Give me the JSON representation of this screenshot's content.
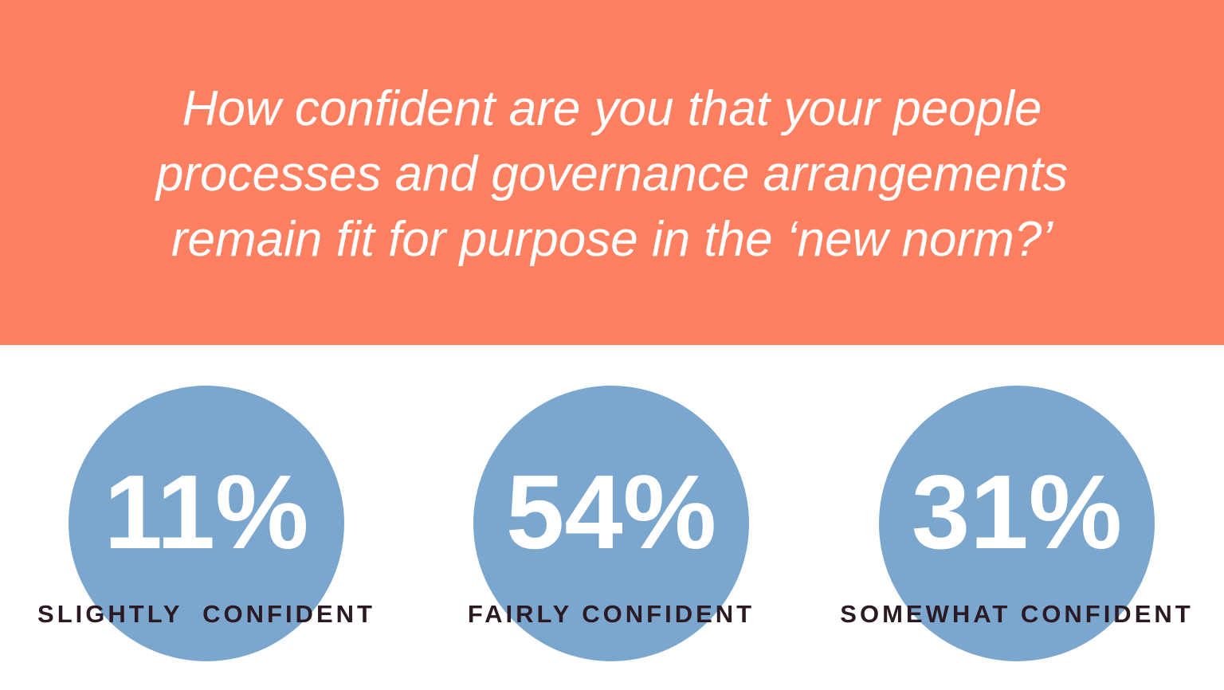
{
  "header": {
    "title_lines": [
      "How confident are you that your people",
      "processes and governance arrangements",
      "remain fit for purpose in the ‘new norm?’"
    ]
  },
  "stats": [
    {
      "value": "11%",
      "label": "SLIGHTLY  CONFIDENT"
    },
    {
      "value": "54%",
      "label": "FAIRLY CONFIDENT"
    },
    {
      "value": "31%",
      "label": "SOMEWHAT CONFIDENT"
    }
  ]
}
